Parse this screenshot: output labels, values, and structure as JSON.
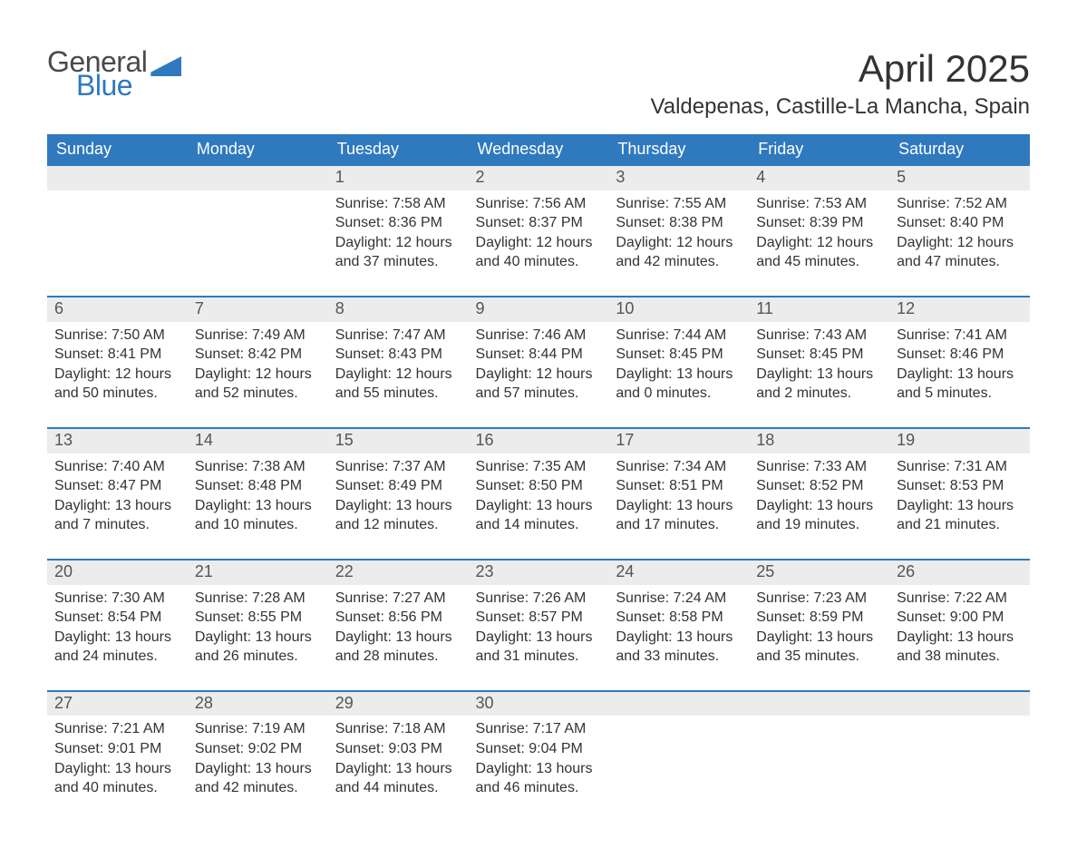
{
  "logo": {
    "word1": "General",
    "word2": "Blue",
    "accent_color": "#2f79bf",
    "text_color": "#4a4a4a"
  },
  "title": "April 2025",
  "location": "Valdepenas, Castille-La Mancha, Spain",
  "colors": {
    "header_bg": "#2f79bf",
    "header_text": "#ffffff",
    "daynum_bg": "#ececec",
    "body_text": "#333333",
    "row_separator": "#2f79bf"
  },
  "weekdays": [
    "Sunday",
    "Monday",
    "Tuesday",
    "Wednesday",
    "Thursday",
    "Friday",
    "Saturday"
  ],
  "weeks": [
    [
      null,
      null,
      {
        "n": "1",
        "sr": "Sunrise: 7:58 AM",
        "ss": "Sunset: 8:36 PM",
        "d1": "Daylight: 12 hours",
        "d2": "and 37 minutes."
      },
      {
        "n": "2",
        "sr": "Sunrise: 7:56 AM",
        "ss": "Sunset: 8:37 PM",
        "d1": "Daylight: 12 hours",
        "d2": "and 40 minutes."
      },
      {
        "n": "3",
        "sr": "Sunrise: 7:55 AM",
        "ss": "Sunset: 8:38 PM",
        "d1": "Daylight: 12 hours",
        "d2": "and 42 minutes."
      },
      {
        "n": "4",
        "sr": "Sunrise: 7:53 AM",
        "ss": "Sunset: 8:39 PM",
        "d1": "Daylight: 12 hours",
        "d2": "and 45 minutes."
      },
      {
        "n": "5",
        "sr": "Sunrise: 7:52 AM",
        "ss": "Sunset: 8:40 PM",
        "d1": "Daylight: 12 hours",
        "d2": "and 47 minutes."
      }
    ],
    [
      {
        "n": "6",
        "sr": "Sunrise: 7:50 AM",
        "ss": "Sunset: 8:41 PM",
        "d1": "Daylight: 12 hours",
        "d2": "and 50 minutes."
      },
      {
        "n": "7",
        "sr": "Sunrise: 7:49 AM",
        "ss": "Sunset: 8:42 PM",
        "d1": "Daylight: 12 hours",
        "d2": "and 52 minutes."
      },
      {
        "n": "8",
        "sr": "Sunrise: 7:47 AM",
        "ss": "Sunset: 8:43 PM",
        "d1": "Daylight: 12 hours",
        "d2": "and 55 minutes."
      },
      {
        "n": "9",
        "sr": "Sunrise: 7:46 AM",
        "ss": "Sunset: 8:44 PM",
        "d1": "Daylight: 12 hours",
        "d2": "and 57 minutes."
      },
      {
        "n": "10",
        "sr": "Sunrise: 7:44 AM",
        "ss": "Sunset: 8:45 PM",
        "d1": "Daylight: 13 hours",
        "d2": "and 0 minutes."
      },
      {
        "n": "11",
        "sr": "Sunrise: 7:43 AM",
        "ss": "Sunset: 8:45 PM",
        "d1": "Daylight: 13 hours",
        "d2": "and 2 minutes."
      },
      {
        "n": "12",
        "sr": "Sunrise: 7:41 AM",
        "ss": "Sunset: 8:46 PM",
        "d1": "Daylight: 13 hours",
        "d2": "and 5 minutes."
      }
    ],
    [
      {
        "n": "13",
        "sr": "Sunrise: 7:40 AM",
        "ss": "Sunset: 8:47 PM",
        "d1": "Daylight: 13 hours",
        "d2": "and 7 minutes."
      },
      {
        "n": "14",
        "sr": "Sunrise: 7:38 AM",
        "ss": "Sunset: 8:48 PM",
        "d1": "Daylight: 13 hours",
        "d2": "and 10 minutes."
      },
      {
        "n": "15",
        "sr": "Sunrise: 7:37 AM",
        "ss": "Sunset: 8:49 PM",
        "d1": "Daylight: 13 hours",
        "d2": "and 12 minutes."
      },
      {
        "n": "16",
        "sr": "Sunrise: 7:35 AM",
        "ss": "Sunset: 8:50 PM",
        "d1": "Daylight: 13 hours",
        "d2": "and 14 minutes."
      },
      {
        "n": "17",
        "sr": "Sunrise: 7:34 AM",
        "ss": "Sunset: 8:51 PM",
        "d1": "Daylight: 13 hours",
        "d2": "and 17 minutes."
      },
      {
        "n": "18",
        "sr": "Sunrise: 7:33 AM",
        "ss": "Sunset: 8:52 PM",
        "d1": "Daylight: 13 hours",
        "d2": "and 19 minutes."
      },
      {
        "n": "19",
        "sr": "Sunrise: 7:31 AM",
        "ss": "Sunset: 8:53 PM",
        "d1": "Daylight: 13 hours",
        "d2": "and 21 minutes."
      }
    ],
    [
      {
        "n": "20",
        "sr": "Sunrise: 7:30 AM",
        "ss": "Sunset: 8:54 PM",
        "d1": "Daylight: 13 hours",
        "d2": "and 24 minutes."
      },
      {
        "n": "21",
        "sr": "Sunrise: 7:28 AM",
        "ss": "Sunset: 8:55 PM",
        "d1": "Daylight: 13 hours",
        "d2": "and 26 minutes."
      },
      {
        "n": "22",
        "sr": "Sunrise: 7:27 AM",
        "ss": "Sunset: 8:56 PM",
        "d1": "Daylight: 13 hours",
        "d2": "and 28 minutes."
      },
      {
        "n": "23",
        "sr": "Sunrise: 7:26 AM",
        "ss": "Sunset: 8:57 PM",
        "d1": "Daylight: 13 hours",
        "d2": "and 31 minutes."
      },
      {
        "n": "24",
        "sr": "Sunrise: 7:24 AM",
        "ss": "Sunset: 8:58 PM",
        "d1": "Daylight: 13 hours",
        "d2": "and 33 minutes."
      },
      {
        "n": "25",
        "sr": "Sunrise: 7:23 AM",
        "ss": "Sunset: 8:59 PM",
        "d1": "Daylight: 13 hours",
        "d2": "and 35 minutes."
      },
      {
        "n": "26",
        "sr": "Sunrise: 7:22 AM",
        "ss": "Sunset: 9:00 PM",
        "d1": "Daylight: 13 hours",
        "d2": "and 38 minutes."
      }
    ],
    [
      {
        "n": "27",
        "sr": "Sunrise: 7:21 AM",
        "ss": "Sunset: 9:01 PM",
        "d1": "Daylight: 13 hours",
        "d2": "and 40 minutes."
      },
      {
        "n": "28",
        "sr": "Sunrise: 7:19 AM",
        "ss": "Sunset: 9:02 PM",
        "d1": "Daylight: 13 hours",
        "d2": "and 42 minutes."
      },
      {
        "n": "29",
        "sr": "Sunrise: 7:18 AM",
        "ss": "Sunset: 9:03 PM",
        "d1": "Daylight: 13 hours",
        "d2": "and 44 minutes."
      },
      {
        "n": "30",
        "sr": "Sunrise: 7:17 AM",
        "ss": "Sunset: 9:04 PM",
        "d1": "Daylight: 13 hours",
        "d2": "and 46 minutes."
      },
      null,
      null,
      null
    ]
  ]
}
